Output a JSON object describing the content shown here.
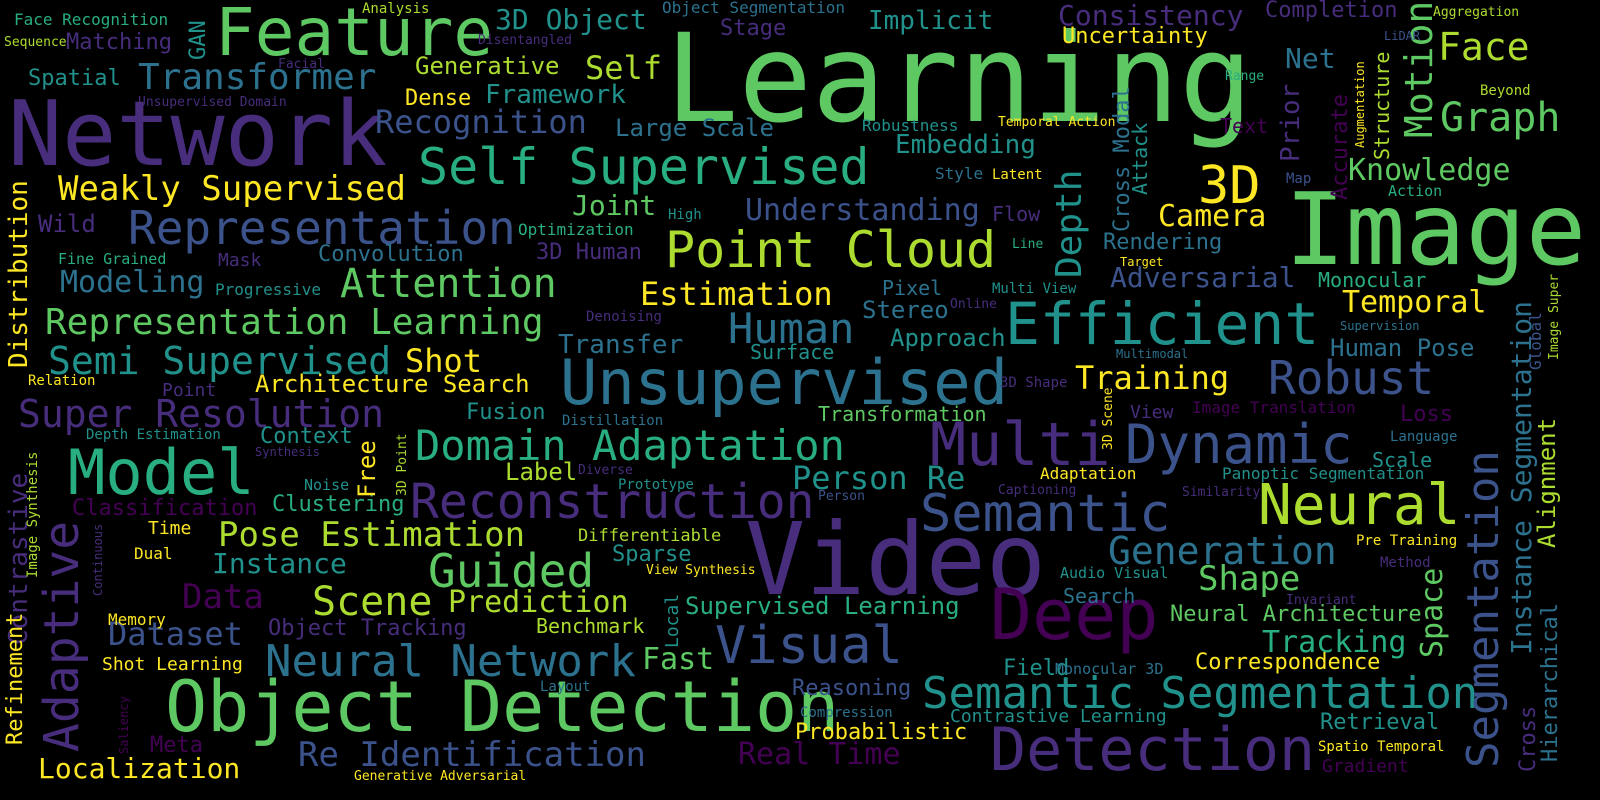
{
  "colors": {
    "background": "#000000",
    "palette": [
      "#440154",
      "#472d7b",
      "#3b528b",
      "#2c728e",
      "#21918c",
      "#28ae80",
      "#5ec962",
      "#addc30",
      "#fde725"
    ]
  },
  "words": [
    {
      "text": "Learning"
    },
    {
      "text": "Image"
    },
    {
      "text": "Video"
    },
    {
      "text": "Network"
    },
    {
      "text": "Object Detection"
    },
    {
      "text": "Deep"
    },
    {
      "text": "Detection"
    },
    {
      "text": "Feature"
    },
    {
      "text": "Multi"
    },
    {
      "text": "Unsupervised"
    },
    {
      "text": "Model"
    },
    {
      "text": "Reconstruction"
    },
    {
      "text": "Efficient"
    },
    {
      "text": "Self Supervised"
    },
    {
      "text": "Point Cloud"
    },
    {
      "text": "Representation"
    },
    {
      "text": "Semantic Segmentation"
    },
    {
      "text": "Neural Network"
    },
    {
      "text": "Dynamic"
    },
    {
      "text": "Semantic"
    },
    {
      "text": "Neural"
    },
    {
      "text": "Visual"
    },
    {
      "text": "Domain Adaptation"
    },
    {
      "text": "Adaptive"
    },
    {
      "text": "Segmentation"
    },
    {
      "text": "Guided"
    },
    {
      "text": "Re Identification"
    },
    {
      "text": "3D"
    },
    {
      "text": "Robust"
    },
    {
      "text": "Attention"
    },
    {
      "text": "Representation Learning"
    },
    {
      "text": "Super Resolution"
    },
    {
      "text": "Semi Supervised"
    },
    {
      "text": "Scene"
    },
    {
      "text": "Generation"
    },
    {
      "text": "Human"
    },
    {
      "text": "Pose Estimation"
    },
    {
      "text": "Weakly Supervised"
    },
    {
      "text": "Transformer"
    },
    {
      "text": "Graph"
    },
    {
      "text": "Face"
    },
    {
      "text": "Localization"
    },
    {
      "text": "Prediction"
    },
    {
      "text": "Estimation"
    },
    {
      "text": "Training"
    },
    {
      "text": "Dataset"
    },
    {
      "text": "Understanding"
    },
    {
      "text": "Shape"
    },
    {
      "text": "Real Time"
    },
    {
      "text": "Person Re"
    },
    {
      "text": "Knowledge"
    },
    {
      "text": "Temporal"
    },
    {
      "text": "Recognition"
    },
    {
      "text": "Adversarial"
    },
    {
      "text": "Depth"
    },
    {
      "text": "Motion"
    },
    {
      "text": "Camera"
    },
    {
      "text": "Consistency"
    },
    {
      "text": "3D Object"
    },
    {
      "text": "Modeling"
    },
    {
      "text": "Shot"
    },
    {
      "text": "Instance"
    },
    {
      "text": "Data"
    },
    {
      "text": "Fast"
    },
    {
      "text": "Tracking"
    },
    {
      "text": "Human Pose"
    },
    {
      "text": "Contrastive"
    },
    {
      "text": "Instance Segmentation"
    },
    {
      "text": "Architecture Search"
    },
    {
      "text": "Supervised Learning"
    },
    {
      "text": "Transfer"
    },
    {
      "text": "Framework"
    },
    {
      "text": "Embedding"
    },
    {
      "text": "Implicit"
    },
    {
      "text": "Self"
    },
    {
      "text": "Joint"
    },
    {
      "text": "Generative"
    },
    {
      "text": "Net"
    },
    {
      "text": "Distribution"
    },
    {
      "text": "Space"
    },
    {
      "text": "Alignment"
    },
    {
      "text": "Large Scale"
    },
    {
      "text": "Neural Architecture"
    },
    {
      "text": "Correspondence"
    },
    {
      "text": "Stereo"
    },
    {
      "text": "Rendering"
    },
    {
      "text": "Cross Modal"
    },
    {
      "text": "Probabilistic"
    },
    {
      "text": "Refinement"
    },
    {
      "text": "Completion"
    },
    {
      "text": "Uncertainty"
    },
    {
      "text": "Prior"
    },
    {
      "text": "Approach"
    },
    {
      "text": "Reasoning"
    },
    {
      "text": "Field"
    },
    {
      "text": "Retrieval"
    },
    {
      "text": "Spatial"
    },
    {
      "text": "Matching"
    },
    {
      "text": "Fusion"
    },
    {
      "text": "Clustering"
    },
    {
      "text": "Context"
    },
    {
      "text": "Label"
    },
    {
      "text": "Benchmark"
    },
    {
      "text": "Object Tracking"
    },
    {
      "text": "Free"
    },
    {
      "text": "Wild"
    },
    {
      "text": "Meta"
    },
    {
      "text": "Classification"
    },
    {
      "text": "Convolution"
    },
    {
      "text": "Stage"
    },
    {
      "text": "Dense"
    },
    {
      "text": "Attack"
    },
    {
      "text": "3D Human"
    },
    {
      "text": "Sparse"
    },
    {
      "text": "Contrastive Learning"
    },
    {
      "text": "Pixel"
    },
    {
      "text": "Flow"
    },
    {
      "text": "Surface"
    },
    {
      "text": "Search"
    },
    {
      "text": "Transformation"
    },
    {
      "text": "Monocular"
    },
    {
      "text": "Loss"
    },
    {
      "text": "Structure"
    },
    {
      "text": "Accurate"
    },
    {
      "text": "Hierarchical"
    },
    {
      "text": "Cross"
    },
    {
      "text": "GAN"
    },
    {
      "text": "Text"
    },
    {
      "text": "Scale"
    },
    {
      "text": "Shot Learning"
    },
    {
      "text": "Point"
    },
    {
      "text": "Time"
    },
    {
      "text": "Dual"
    },
    {
      "text": "Memory"
    },
    {
      "text": "Gradient"
    },
    {
      "text": "Style"
    },
    {
      "text": "Robustness"
    },
    {
      "text": "Mask"
    },
    {
      "text": "Panoptic Segmentation"
    },
    {
      "text": "Adaptation"
    },
    {
      "text": "Global"
    },
    {
      "text": "Audio Visual"
    },
    {
      "text": "Differentiable"
    },
    {
      "text": "Spatio Temporal"
    },
    {
      "text": "Fine Grained"
    },
    {
      "text": "Face Recognition"
    },
    {
      "text": "Local"
    },
    {
      "text": "Progressive"
    },
    {
      "text": "View"
    },
    {
      "text": "Image Translation"
    },
    {
      "text": "Relation"
    },
    {
      "text": "Denoising"
    },
    {
      "text": "Optimization"
    },
    {
      "text": "Pre Training"
    },
    {
      "text": "Monocular 3D"
    },
    {
      "text": "Noise"
    },
    {
      "text": "Layout"
    },
    {
      "text": "Compression"
    },
    {
      "text": "Multi View"
    },
    {
      "text": "Image Synthesis"
    },
    {
      "text": "Depth Estimation"
    },
    {
      "text": "Object Segmentation"
    },
    {
      "text": "Analysis"
    },
    {
      "text": "Disentangled"
    },
    {
      "text": "Unsupervised Domain"
    },
    {
      "text": "Facial"
    },
    {
      "text": "Sequence"
    },
    {
      "text": "Aggregation"
    },
    {
      "text": "Range"
    },
    {
      "text": "Beyond"
    },
    {
      "text": "Augmentation"
    },
    {
      "text": "LiDAR"
    },
    {
      "text": "Temporal Action"
    },
    {
      "text": "Map"
    },
    {
      "text": "Action"
    },
    {
      "text": "Latent"
    },
    {
      "text": "High"
    },
    {
      "text": "Line"
    },
    {
      "text": "Target"
    },
    {
      "text": "Online"
    },
    {
      "text": "Supervision"
    },
    {
      "text": "Multimodal"
    },
    {
      "text": "3D Shape"
    },
    {
      "text": "3D Scene"
    },
    {
      "text": "Image Super"
    },
    {
      "text": "Language"
    },
    {
      "text": "Distillation"
    },
    {
      "text": "Synthesis"
    },
    {
      "text": "3D Point"
    },
    {
      "text": "Diverse"
    },
    {
      "text": "Prototype"
    },
    {
      "text": "Person"
    },
    {
      "text": "Captioning"
    },
    {
      "text": "Similarity"
    },
    {
      "text": "Method"
    },
    {
      "text": "View Synthesis"
    },
    {
      "text": "Continuous"
    },
    {
      "text": "Invariant"
    },
    {
      "text": "Saliency"
    },
    {
      "text": "Generative Adversarial"
    }
  ]
}
